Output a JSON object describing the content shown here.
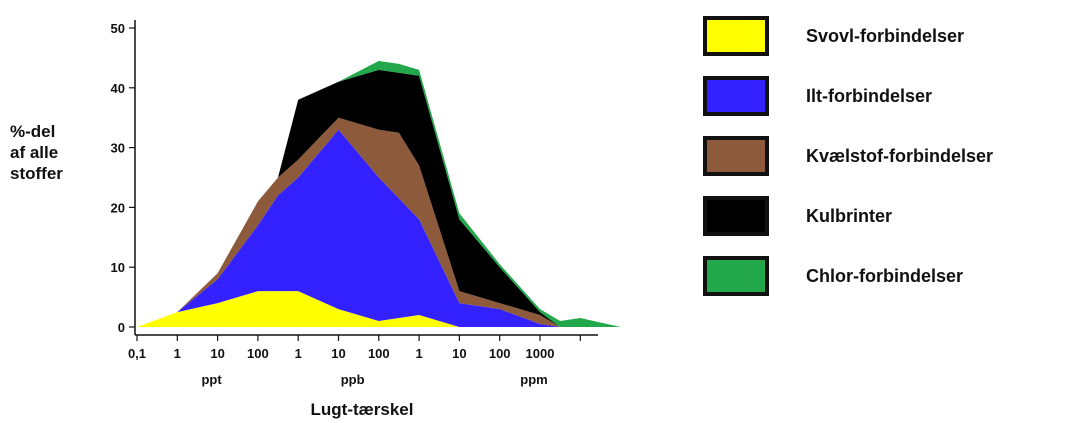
{
  "chart_data": {
    "type": "area",
    "style": "stacked",
    "ylabel": [
      "%-del",
      "af alle",
      "stoffer"
    ],
    "xlabel": "Lugt-tærskel",
    "ylim": [
      0,
      50
    ],
    "yticks": [
      0,
      10,
      20,
      30,
      40,
      50
    ],
    "xticks": [
      "0,1",
      "1",
      "10",
      "100",
      "1",
      "10",
      "100",
      "1",
      "10",
      "100",
      "1000"
    ],
    "x_units": [
      "ppt",
      "ppb",
      "ppm"
    ],
    "x_positions_decades": [
      0,
      1,
      2,
      3,
      3.5,
      4,
      5,
      6,
      6.5,
      7,
      8,
      9,
      10,
      10.5,
      11,
      12
    ],
    "series": [
      {
        "name": "Svovl-forbindelser",
        "color": "#FFFF00",
        "values": [
          0,
          2.5,
          4,
          6,
          6,
          6,
          3,
          1,
          1.5,
          2,
          0,
          0,
          0,
          0,
          0,
          0
        ]
      },
      {
        "name": "Ilt-forbindelser",
        "color": "#3322FF",
        "values": [
          0,
          0,
          4,
          11,
          16,
          19,
          30,
          24,
          20,
          16,
          4,
          3,
          0.5,
          0,
          0,
          0
        ]
      },
      {
        "name": "Kvælstof-forbindelser",
        "color": "#8E5A3C",
        "values": [
          0,
          0,
          1,
          4,
          3,
          3,
          2,
          8,
          11,
          9,
          2,
          1,
          1.5,
          0,
          0,
          0
        ]
      },
      {
        "name": "Kulbrinter",
        "color": "#000000",
        "values": [
          0,
          0,
          0,
          0,
          0,
          10,
          6,
          10,
          10,
          15,
          12,
          6,
          0.5,
          0,
          0,
          0
        ]
      },
      {
        "name": "Chlor-forbindelser",
        "color": "#22A84A",
        "values": [
          0,
          0,
          0,
          0,
          0,
          0,
          0,
          1.5,
          1.5,
          1,
          1,
          0.5,
          0.5,
          1,
          1.5,
          0
        ]
      }
    ]
  }
}
